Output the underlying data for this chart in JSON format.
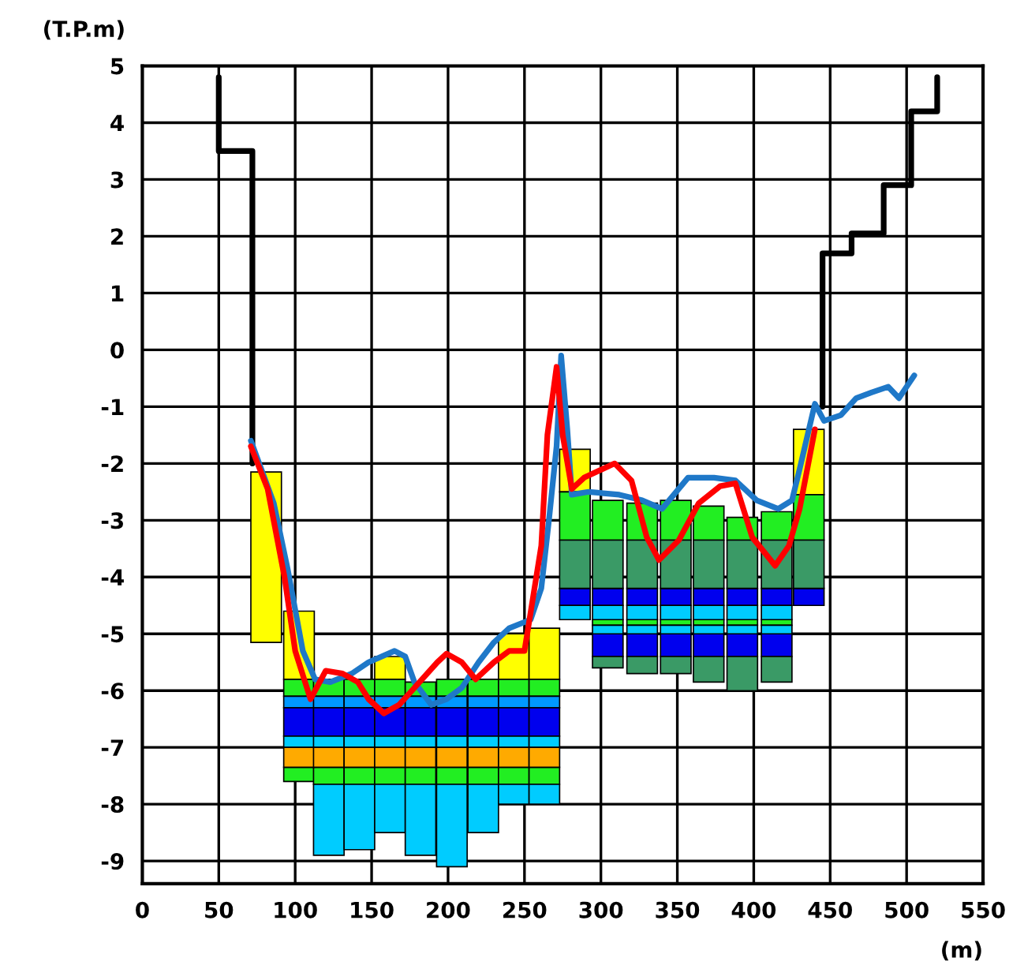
{
  "chart_data": {
    "type": "bar",
    "ylabel": "(T.P.m)",
    "xlabel": "(m)",
    "xlim": [
      0,
      550
    ],
    "xticks": [
      0,
      50,
      100,
      150,
      200,
      250,
      300,
      350,
      400,
      450,
      500,
      550
    ],
    "ylim": [
      -9.4,
      5
    ],
    "yticks": [
      -9,
      -8,
      -7,
      -6,
      -5,
      -4,
      -3,
      -2,
      -1,
      0,
      1,
      2,
      3,
      4,
      5
    ],
    "grid": true,
    "series": [
      {
        "color": "#ffff00",
        "x": [
          81,
          102.5,
          162,
          243,
          263,
          283,
          436
        ],
        "base": [
          -5.15,
          -5.8,
          -5.8,
          -5.8,
          -5.8,
          -2.5,
          -2.55
        ],
        "values": [
          3.0,
          1.2,
          0.4,
          0.8,
          0.9,
          0.75,
          1.15
        ]
      },
      {
        "color": "#22ee22",
        "x": [
          102.5,
          122,
          142,
          162,
          182,
          202.5,
          223,
          243,
          263,
          283,
          304.5,
          327,
          349,
          370.5,
          392.5,
          415,
          436
        ],
        "base": [
          -6.1,
          -6.1,
          -6.1,
          -6.1,
          -6.1,
          -6.1,
          -6.1,
          -6.1,
          -6.1,
          -3.35,
          -3.35,
          -3.35,
          -3.35,
          -3.35,
          -3.35,
          -3.35,
          -3.35
        ],
        "values": [
          0.3,
          0.3,
          0.3,
          0.3,
          0.25,
          0.3,
          0.3,
          0.3,
          0.3,
          0.85,
          0.7,
          0.65,
          0.7,
          0.6,
          0.4,
          0.5,
          0.8
        ]
      },
      {
        "color": "#22ee22",
        "x": [
          102.5,
          122,
          142,
          162,
          182,
          202.5,
          223,
          243,
          263,
          304.5,
          327,
          349,
          370.5,
          392.5,
          415
        ],
        "base": [
          -7.6,
          -7.65,
          -7.65,
          -7.65,
          -7.65,
          -7.65,
          -7.65,
          -7.65,
          -7.65,
          -4.85,
          -4.85,
          -4.85,
          -4.85,
          -4.85,
          -4.85
        ],
        "values": [
          0.25,
          0.3,
          0.3,
          0.3,
          0.3,
          0.3,
          0.3,
          0.3,
          0.3,
          0.1,
          0.1,
          0.1,
          0.1,
          0.1,
          0.1
        ]
      },
      {
        "color": "#0099ff",
        "x": [
          102.5,
          122,
          142,
          162,
          182,
          202.5,
          223,
          243,
          263
        ],
        "base": [
          -6.3,
          -6.3,
          -6.3,
          -6.3,
          -6.3,
          -6.3,
          -6.3,
          -6.3,
          -6.3
        ],
        "values": [
          0.2,
          0.2,
          0.2,
          0.2,
          0.2,
          0.2,
          0.2,
          0.2,
          0.2
        ]
      },
      {
        "color": "#0000ee",
        "x": [
          102.5,
          122,
          142,
          162,
          182,
          202.5,
          223,
          243,
          263,
          283,
          304.5,
          327,
          349,
          370.5,
          392.5,
          415,
          436
        ],
        "base": [
          -6.8,
          -6.8,
          -6.8,
          -6.8,
          -6.8,
          -6.8,
          -6.8,
          -6.8,
          -6.8,
          -4.5,
          -4.5,
          -4.5,
          -4.5,
          -4.5,
          -4.5,
          -4.5,
          -4.5
        ],
        "values": [
          0.5,
          0.5,
          0.5,
          0.5,
          0.5,
          0.5,
          0.5,
          0.5,
          0.5,
          0.3,
          0.3,
          0.3,
          0.3,
          0.3,
          0.3,
          0.3,
          0.3
        ]
      },
      {
        "color": "#0000ee",
        "x": [
          304.5,
          327,
          349,
          370.5,
          392.5,
          415
        ],
        "base": [
          -5.4,
          -5.4,
          -5.4,
          -5.4,
          -5.4,
          -5.4
        ],
        "values": [
          0.4,
          0.4,
          0.4,
          0.4,
          0.4,
          0.4
        ]
      },
      {
        "color": "#00ccff",
        "x": [
          102.5,
          122,
          142,
          162,
          182,
          202.5,
          223,
          243,
          263,
          283,
          304.5,
          327,
          349,
          370.5,
          392.5,
          415
        ],
        "base": [
          -7.0,
          -7.0,
          -7.0,
          -7.0,
          -7.0,
          -7.0,
          -7.0,
          -7.0,
          -7.0,
          -4.75,
          -4.75,
          -4.75,
          -4.75,
          -4.75,
          -4.75,
          -4.75
        ],
        "values": [
          0.2,
          0.2,
          0.2,
          0.2,
          0.2,
          0.2,
          0.2,
          0.2,
          0.2,
          0.25,
          0.25,
          0.25,
          0.25,
          0.25,
          0.25,
          0.25
        ]
      },
      {
        "color": "#00ccff",
        "x": [
          122,
          142,
          162,
          182,
          202.5,
          223,
          243,
          263
        ],
        "base": [
          -8.9,
          -8.8,
          -8.5,
          -8.9,
          -9.1,
          -8.5,
          -8.0,
          -8.0
        ],
        "values": [
          1.25,
          1.15,
          0.85,
          1.25,
          1.45,
          0.85,
          0.35,
          0.35
        ]
      },
      {
        "color": "#00ccff",
        "x": [
          304.5,
          327,
          349,
          370.5,
          392.5,
          415
        ],
        "base": [
          -5.0,
          -5.0,
          -5.0,
          -5.0,
          -5.0,
          -5.0
        ],
        "values": [
          0.15,
          0.15,
          0.15,
          0.15,
          0.15,
          0.15
        ]
      },
      {
        "color": "#ffaa00",
        "x": [
          102.5,
          122,
          142,
          162,
          182,
          202.5,
          223,
          243,
          263
        ],
        "base": [
          -7.35,
          -7.35,
          -7.35,
          -7.35,
          -7.35,
          -7.35,
          -7.35,
          -7.35,
          -7.35
        ],
        "values": [
          0.35,
          0.35,
          0.35,
          0.35,
          0.35,
          0.35,
          0.35,
          0.35,
          0.35
        ]
      },
      {
        "color": "#3a9a66",
        "x": [
          283,
          304.5,
          327,
          349,
          370.5,
          392.5,
          415,
          436
        ],
        "base": [
          -4.2,
          -4.2,
          -4.2,
          -4.2,
          -4.2,
          -4.2,
          -4.2,
          -4.2
        ],
        "values": [
          0.85,
          0.85,
          0.85,
          0.85,
          0.85,
          0.85,
          0.85,
          0.85
        ]
      },
      {
        "color": "#3a9a66",
        "x": [
          304.5,
          327,
          349,
          370.5,
          392.5,
          415
        ],
        "base": [
          -5.6,
          -5.7,
          -5.7,
          -5.85,
          -6.0,
          -5.85
        ],
        "values": [
          0.2,
          0.3,
          0.3,
          0.45,
          0.6,
          0.45
        ]
      },
      {
        "type": "line",
        "color": "#000000",
        "x": [
          50,
          50,
          72,
          72,
          300,
          445,
          445,
          464,
          464,
          485,
          485,
          503,
          503,
          520,
          520
        ],
        "values": [
          4.8,
          3.5,
          3.5,
          -2.0,
          null,
          -1.0,
          1.7,
          1.7,
          2.05,
          2.05,
          2.9,
          2.9,
          4.2,
          4.2,
          4.8
        ]
      },
      {
        "type": "line",
        "color": "#1f78c8",
        "x": [
          71,
          86,
          95,
          105,
          113,
          123,
          137,
          148,
          165,
          172,
          178,
          189,
          199,
          209,
          220,
          230,
          240,
          254,
          261,
          266,
          271,
          274,
          278,
          281,
          292,
          312,
          327,
          340,
          357,
          374,
          388,
          402,
          416,
          425,
          430,
          440,
          446,
          457,
          467,
          477,
          488,
          495,
          505
        ],
        "values": [
          -1.6,
          -2.7,
          -3.85,
          -5.3,
          -5.8,
          -5.85,
          -5.7,
          -5.5,
          -5.3,
          -5.4,
          -5.85,
          -6.25,
          -6.15,
          -5.95,
          -5.5,
          -5.15,
          -4.9,
          -4.75,
          -4.2,
          -3.0,
          -1.7,
          -0.1,
          -1.4,
          -2.55,
          -2.5,
          -2.55,
          -2.65,
          -2.8,
          -2.25,
          -2.25,
          -2.3,
          -2.65,
          -2.8,
          -2.65,
          -2.1,
          -0.95,
          -1.25,
          -1.15,
          -0.85,
          -0.75,
          -0.65,
          -0.85,
          -0.45
        ]
      },
      {
        "type": "line",
        "color": "#ff0000",
        "x": [
          71,
          82,
          93,
          100,
          110,
          120,
          131,
          141,
          148,
          158,
          168,
          178,
          193,
          199,
          209,
          218,
          230,
          240,
          250,
          261,
          265,
          271,
          275,
          281,
          289,
          309,
          320,
          330,
          338,
          351,
          364,
          378,
          388,
          399,
          414,
          423,
          430,
          440
        ],
        "values": [
          -1.7,
          -2.45,
          -4.0,
          -5.3,
          -6.15,
          -5.65,
          -5.7,
          -5.85,
          -6.15,
          -6.4,
          -6.25,
          -5.95,
          -5.5,
          -5.35,
          -5.5,
          -5.8,
          -5.5,
          -5.3,
          -5.3,
          -3.45,
          -1.5,
          -0.3,
          -1.5,
          -2.45,
          -2.25,
          -2.0,
          -2.3,
          -3.3,
          -3.7,
          -3.35,
          -2.7,
          -2.4,
          -2.35,
          -3.3,
          -3.8,
          -3.45,
          -2.8,
          -1.4
        ]
      }
    ]
  }
}
